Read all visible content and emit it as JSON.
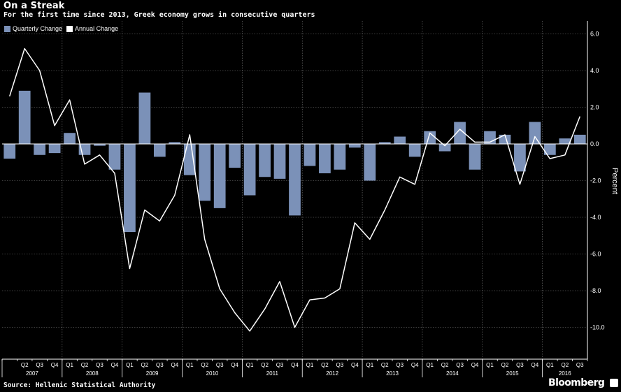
{
  "title": "On a Streak",
  "subtitle": "For the first time since 2013, Greek economy grows in consecutive quarters",
  "source": "Source: Hellenic Statistical Authority",
  "brand": "Bloomberg",
  "colors": {
    "background": "#000000",
    "bars": "#7b91b8",
    "line": "#ffffff",
    "grid": "#7a7a7a",
    "text": "#ffffff"
  },
  "legend": [
    {
      "label": "Quarterly Change",
      "color": "#7b91b8"
    },
    {
      "label": "Annual Change",
      "color": "#ffffff"
    }
  ],
  "chart_data": {
    "type": "bar",
    "ylabel": "Percent",
    "ylim": [
      -12,
      6.5
    ],
    "y_ticks": [
      "6.0",
      "4.0",
      "2.0",
      "0.0",
      "-2.0",
      "-4.0",
      "-6.0",
      "-8.0",
      "-10.0"
    ],
    "y_tick_values": [
      6,
      4,
      2,
      0,
      -2,
      -4,
      -6,
      -8,
      -10
    ],
    "grid": true,
    "legend_position": "top-left",
    "y_axis_side": "right",
    "categories": [
      "Q1 2007",
      "Q2 2007",
      "Q3 2007",
      "Q4 2007",
      "Q1 2008",
      "Q2 2008",
      "Q3 2008",
      "Q4 2008",
      "Q1 2009",
      "Q2 2009",
      "Q3 2009",
      "Q4 2009",
      "Q1 2010",
      "Q2 2010",
      "Q3 2010",
      "Q4 2010",
      "Q1 2011",
      "Q2 2011",
      "Q3 2011",
      "Q4 2011",
      "Q1 2012",
      "Q2 2012",
      "Q3 2012",
      "Q4 2012",
      "Q1 2013",
      "Q2 2013",
      "Q3 2013",
      "Q4 2013",
      "Q1 2014",
      "Q2 2014",
      "Q3 2014",
      "Q4 2014",
      "Q1 2015",
      "Q2 2015",
      "Q3 2015",
      "Q4 2015",
      "Q1 2016",
      "Q2 2016",
      "Q3 2016"
    ],
    "quarter_labels": [
      "",
      "Q2",
      "Q3",
      "Q4",
      "Q1",
      "Q2",
      "Q3",
      "Q4",
      "Q1",
      "Q2",
      "Q3",
      "Q4",
      "Q1",
      "Q2",
      "Q3",
      "Q4",
      "Q1",
      "Q2",
      "Q3",
      "Q4",
      "Q1",
      "Q2",
      "Q3",
      "Q4",
      "Q1",
      "Q2",
      "Q3",
      "Q4",
      "Q1",
      "Q2",
      "Q3",
      "Q4",
      "Q1",
      "Q2",
      "Q3",
      "Q4",
      "Q1",
      "Q2",
      "Q3"
    ],
    "year_labels": [
      {
        "label": "2007",
        "first_index": 0,
        "last_index": 3
      },
      {
        "label": "2008",
        "first_index": 4,
        "last_index": 7
      },
      {
        "label": "2009",
        "first_index": 8,
        "last_index": 11
      },
      {
        "label": "2010",
        "first_index": 12,
        "last_index": 15
      },
      {
        "label": "2011",
        "first_index": 16,
        "last_index": 19
      },
      {
        "label": "2012",
        "first_index": 20,
        "last_index": 23
      },
      {
        "label": "2013",
        "first_index": 24,
        "last_index": 27
      },
      {
        "label": "2014",
        "first_index": 28,
        "last_index": 31
      },
      {
        "label": "2015",
        "first_index": 32,
        "last_index": 35
      },
      {
        "label": "2016",
        "first_index": 36,
        "last_index": 38
      }
    ],
    "series": [
      {
        "name": "Quarterly Change",
        "type": "bar",
        "values": [
          -0.8,
          2.9,
          -0.6,
          -0.5,
          0.6,
          -0.6,
          -0.1,
          -1.4,
          -4.8,
          2.8,
          -0.7,
          0.1,
          -1.7,
          -3.1,
          -3.5,
          -1.3,
          -2.8,
          -1.8,
          -1.9,
          -3.9,
          -1.2,
          -1.6,
          -1.4,
          -0.2,
          -2.0,
          0.1,
          0.4,
          -0.7,
          0.7,
          -0.4,
          1.2,
          -1.4,
          0.7,
          0.5,
          -1.5,
          1.2,
          -0.6,
          0.3,
          0.5
        ]
      },
      {
        "name": "Annual Change",
        "type": "line",
        "values": [
          2.6,
          5.2,
          4.0,
          1.0,
          2.4,
          -1.1,
          -0.6,
          -1.6,
          -6.8,
          -3.6,
          -4.2,
          -2.8,
          0.5,
          -5.2,
          -7.9,
          -9.2,
          -10.2,
          -9.0,
          -7.5,
          -10.0,
          -8.5,
          -8.4,
          -7.9,
          -4.3,
          -5.2,
          -3.6,
          -1.8,
          -2.2,
          0.6,
          -0.1,
          0.8,
          0.1,
          0.1,
          0.5,
          -2.2,
          0.4,
          -0.8,
          -0.6,
          1.5
        ]
      }
    ]
  }
}
